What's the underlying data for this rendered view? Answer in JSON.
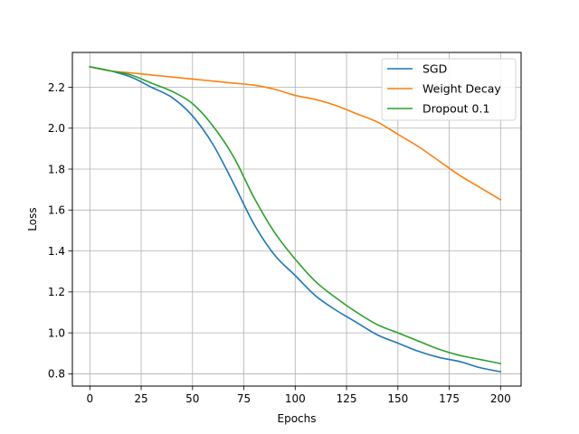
{
  "chart_data": {
    "type": "line",
    "title": "",
    "xlabel": "Epochs",
    "ylabel": "Loss",
    "xlim": [
      -8.5,
      210
    ],
    "ylim": [
      0.74,
      2.37
    ],
    "xticks": [
      0,
      25,
      50,
      75,
      100,
      125,
      150,
      175,
      200
    ],
    "xtick_labels": [
      "0",
      "25",
      "50",
      "75",
      "100",
      "125",
      "150",
      "175",
      "200"
    ],
    "yticks": [
      0.8,
      1.0,
      1.2,
      1.4,
      1.6,
      1.8,
      2.0,
      2.2
    ],
    "ytick_labels": [
      "0.8",
      "1.0",
      "1.2",
      "1.4",
      "1.6",
      "1.8",
      "2.0",
      "2.2"
    ],
    "grid": true,
    "legend_position": "top-right",
    "x": [
      0,
      10,
      20,
      30,
      40,
      50,
      60,
      70,
      80,
      90,
      100,
      110,
      120,
      130,
      140,
      150,
      160,
      170,
      180,
      190,
      200
    ],
    "series": [
      {
        "name": "SGD",
        "color": "#1f77b4",
        "values": [
          2.3,
          2.28,
          2.25,
          2.2,
          2.15,
          2.06,
          1.92,
          1.73,
          1.53,
          1.38,
          1.28,
          1.18,
          1.11,
          1.05,
          0.99,
          0.95,
          0.91,
          0.88,
          0.86,
          0.83,
          0.81
        ]
      },
      {
        "name": "Weight Decay",
        "color": "#ff7f0e",
        "values": [
          2.3,
          2.28,
          2.27,
          2.26,
          2.25,
          2.24,
          2.23,
          2.22,
          2.21,
          2.19,
          2.16,
          2.14,
          2.11,
          2.07,
          2.03,
          1.97,
          1.91,
          1.84,
          1.77,
          1.71,
          1.65
        ]
      },
      {
        "name": "Dropout 0.1",
        "color": "#2ca02c",
        "values": [
          2.3,
          2.28,
          2.26,
          2.22,
          2.18,
          2.12,
          2.01,
          1.86,
          1.66,
          1.49,
          1.36,
          1.25,
          1.17,
          1.1,
          1.04,
          1.0,
          0.96,
          0.92,
          0.89,
          0.87,
          0.85
        ]
      }
    ]
  }
}
